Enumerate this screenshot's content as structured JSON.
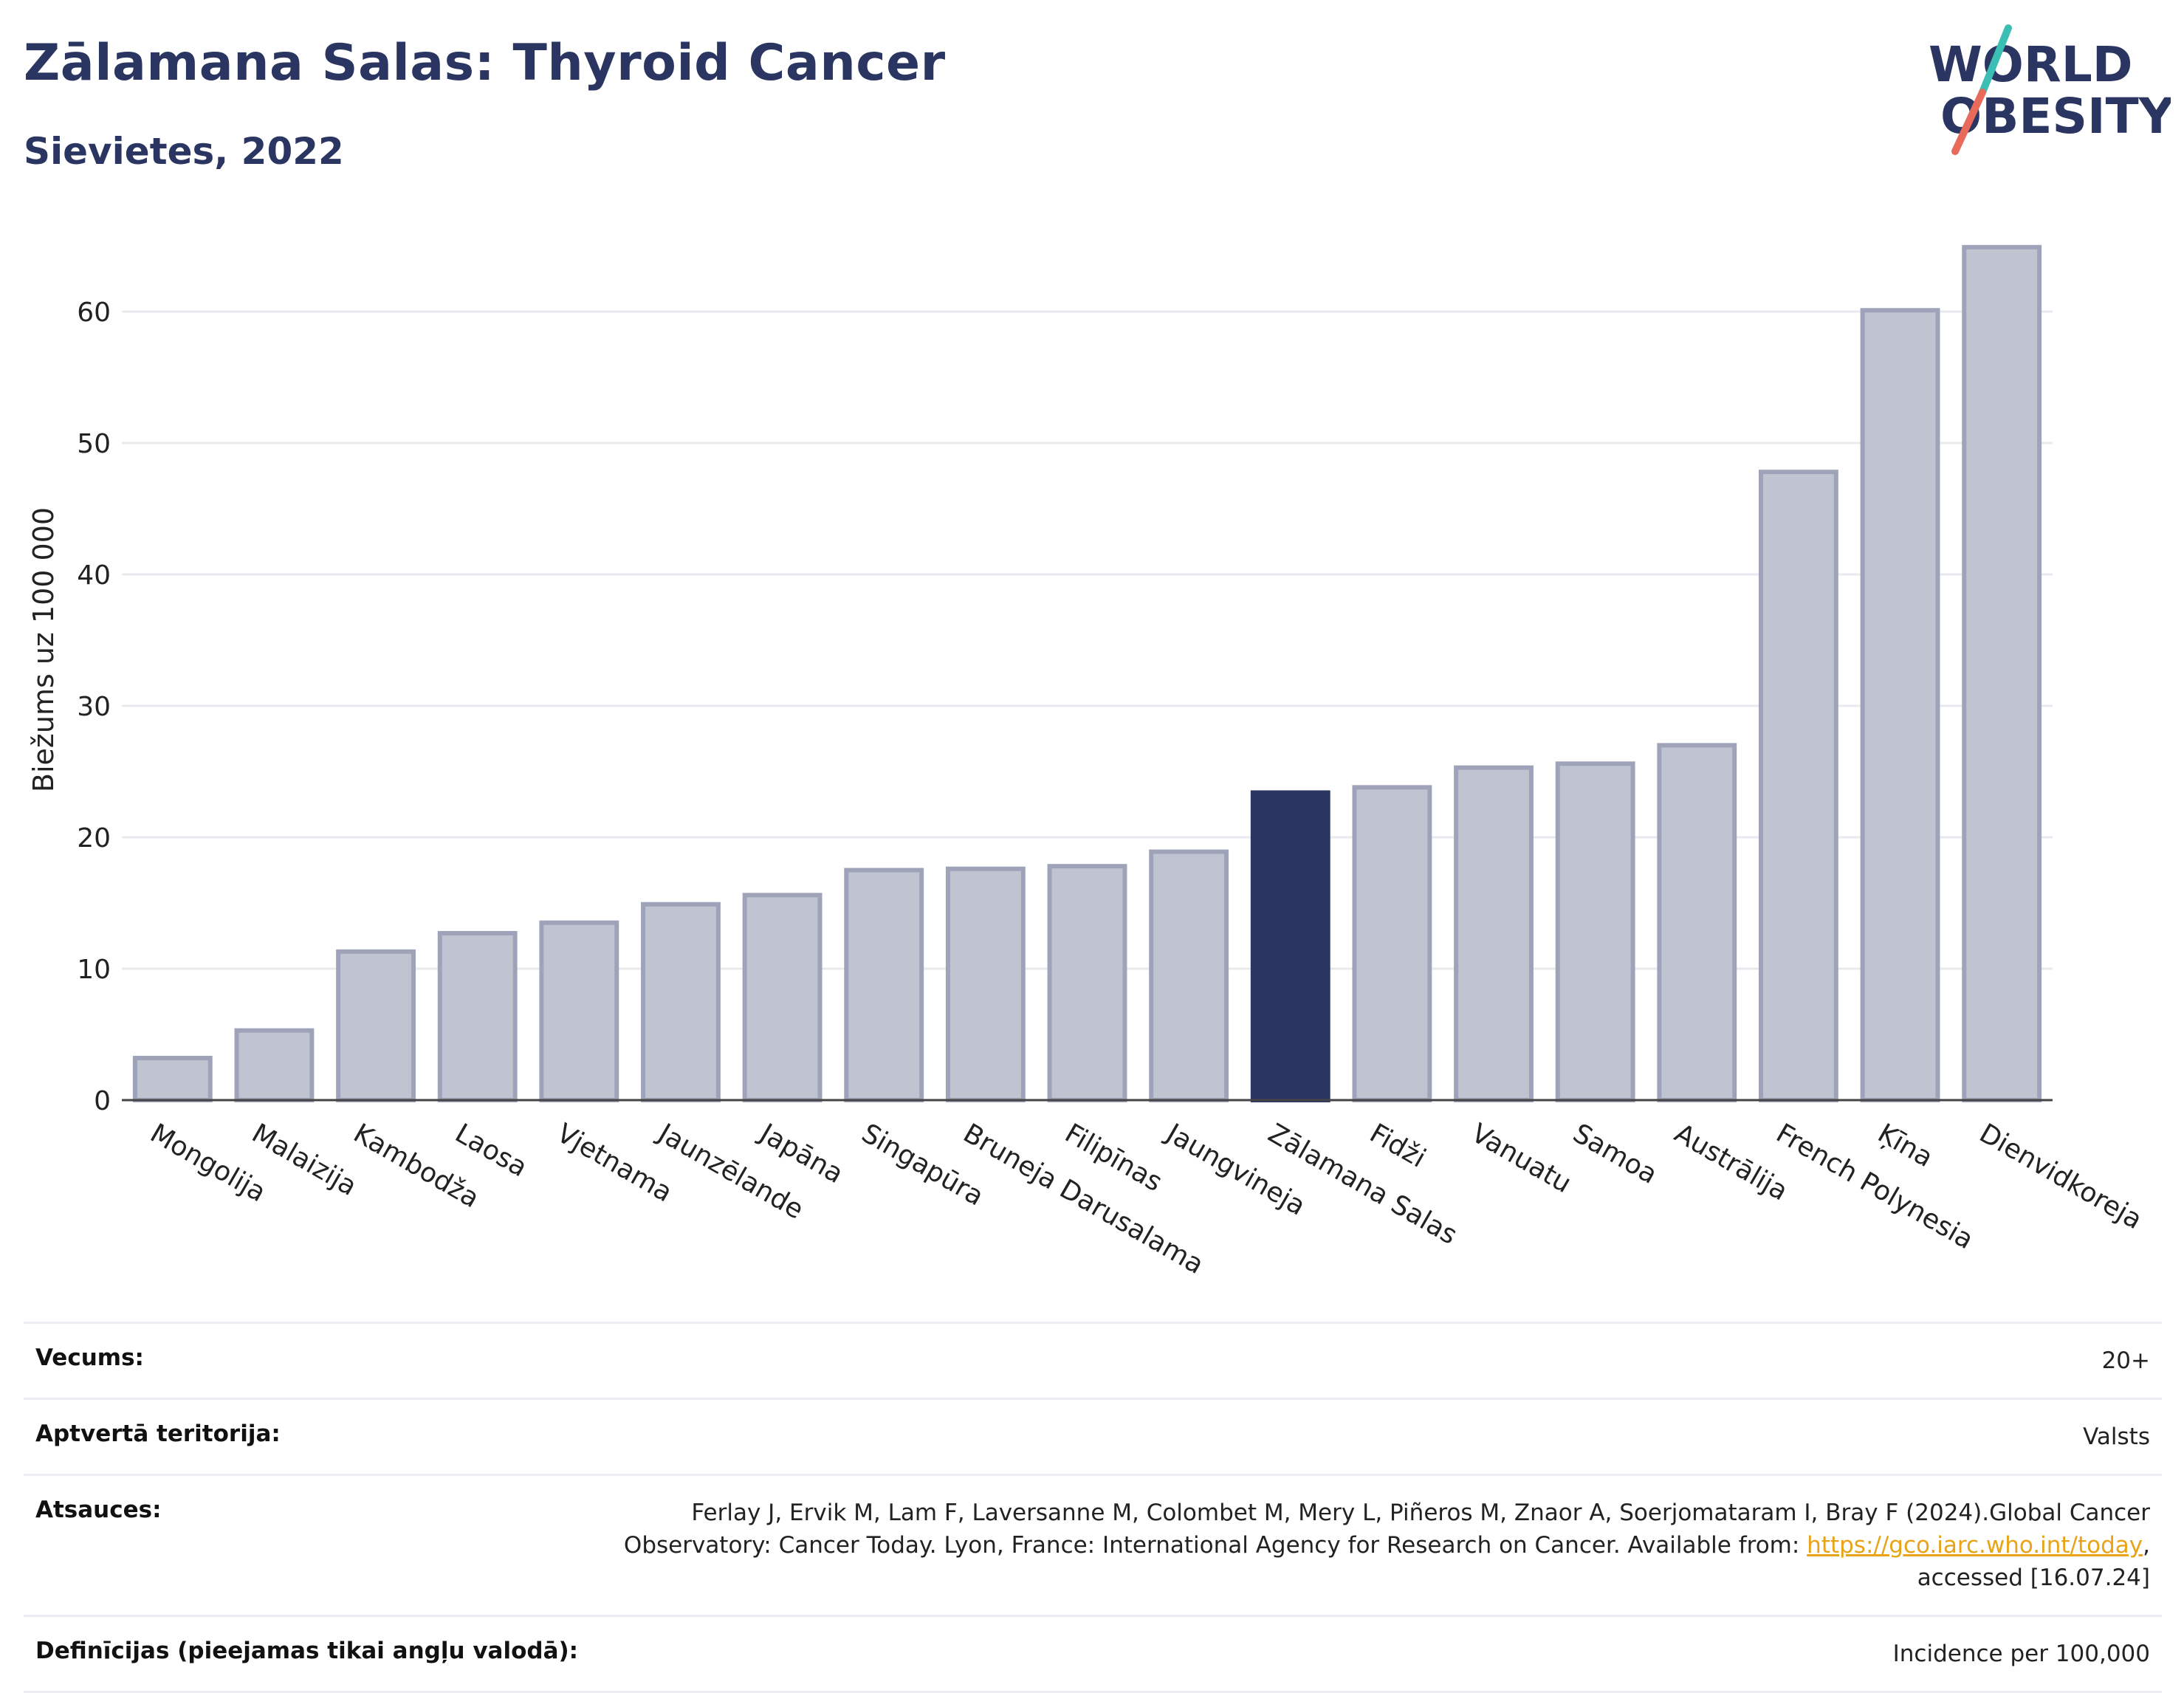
{
  "header": {
    "title": "Zālamana Salas: Thyroid Cancer",
    "subtitle": "Sievietes, 2022"
  },
  "logo": {
    "line1": "WORLD",
    "line2": "OBESITY"
  },
  "colors": {
    "title": "#2a3561",
    "bar_default": "#c0c4d1",
    "bar_default_stroke": "#9ea3b9",
    "bar_highlight": "#2a3561",
    "logo_teal": "#3bbfb4",
    "logo_red": "#e86a5a",
    "link": "#e8a317"
  },
  "chart_data": {
    "type": "bar",
    "title": "Zālamana Salas: Thyroid Cancer",
    "subtitle": "Sievietes, 2022",
    "ylabel": "Biežums uz 100 000",
    "xlabel": "",
    "ylim": [
      0,
      66
    ],
    "yticks": [
      0,
      10,
      20,
      30,
      40,
      50,
      60
    ],
    "grid": true,
    "highlight": "Zālamana Salas",
    "categories": [
      "Mongolija",
      "Malaizija",
      "Kambodža",
      "Laosa",
      "Vjetnama",
      "Jaunzēlande",
      "Japāna",
      "Singapūra",
      "Bruneja Darusalama",
      "Filipīnas",
      "Jaungvineja",
      "Zālamana Salas",
      "Fidži",
      "Vanuatu",
      "Samoa",
      "Austrālija",
      "French Polynesia",
      "Ķīna",
      "Dienvidkoreja"
    ],
    "values": [
      3.2,
      5.3,
      11.3,
      12.7,
      13.5,
      14.9,
      15.6,
      17.5,
      17.6,
      17.8,
      18.9,
      23.4,
      23.8,
      25.3,
      25.6,
      27.0,
      47.8,
      60.1,
      64.9
    ]
  },
  "info": {
    "rows": [
      {
        "label": "Vecums:",
        "value": "20+"
      },
      {
        "label": "Aptvertā teritorija:",
        "value": "Valsts"
      },
      {
        "label": "Atsauces:",
        "value_pre": "Ferlay J, Ervik M, Lam F, Laversanne M, Colombet M, Mery L, Piñeros M, Znaor A, Soerjomataram I, Bray F (2024).Global Cancer Observatory: Cancer Today. Lyon, France: International Agency for Research on Cancer. Available from: ",
        "link": "https://gco.iarc.who.int/today",
        "value_post": ", accessed [16.07.24]"
      },
      {
        "label": "Definīcijas (pieejamas tikai angļu valodā):",
        "value": "Incidence per 100,000"
      }
    ]
  }
}
